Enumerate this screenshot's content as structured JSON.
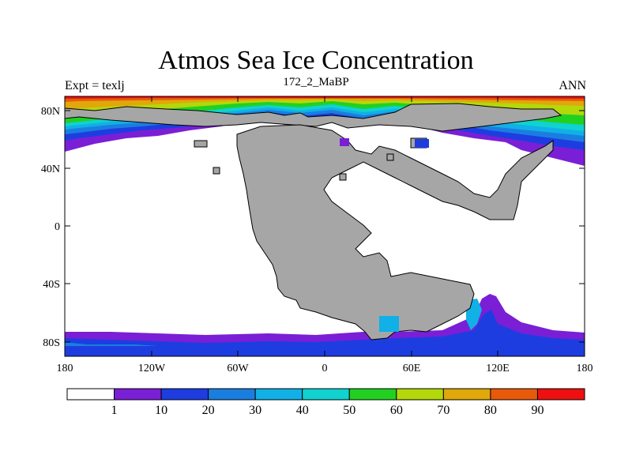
{
  "title": "Atmos Sea Ice Concentration",
  "subtitle": "172_2_MaBP",
  "left_label": "Expt = texlj",
  "right_label": "ANN",
  "x_ticks": [
    "180",
    "120W",
    "60W",
    "0",
    "60E",
    "120E",
    "180"
  ],
  "y_ticks": [
    "80N",
    "40N",
    "0",
    "40S",
    "80S"
  ],
  "colorbar": {
    "levels": [
      "1",
      "10",
      "20",
      "30",
      "40",
      "50",
      "60",
      "70",
      "80",
      "90"
    ],
    "colors": [
      "#ffffff",
      "#7a1fd6",
      "#1e3de0",
      "#1a7ee0",
      "#11b0e6",
      "#10d2d0",
      "#22d022",
      "#b4d80a",
      "#e0a80a",
      "#e85a0a",
      "#ee1010"
    ]
  },
  "colors": {
    "land": "#a6a6a6",
    "ocean_no_ice": "#ffffff",
    "outline": "#000000"
  }
}
